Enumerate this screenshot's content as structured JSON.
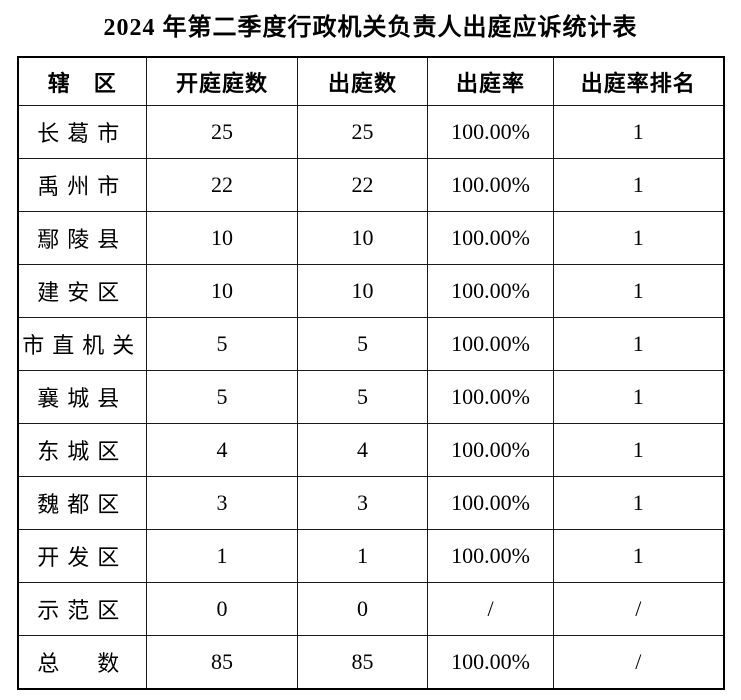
{
  "title": "2024 年第二季度行政机关负责人出庭应诉统计表",
  "colors": {
    "background": "#ffffff",
    "text": "#000000",
    "border": "#000000"
  },
  "table": {
    "headers": {
      "district": "辖　区",
      "sessions": "开庭庭数",
      "appearances": "出庭数",
      "rate": "出庭率",
      "rank": "出庭率排名"
    },
    "rows": [
      {
        "cells": [
          "长葛市",
          "25",
          "25",
          "100.00%",
          "1"
        ]
      },
      {
        "cells": [
          "禹州市",
          "22",
          "22",
          "100.00%",
          "1"
        ]
      },
      {
        "cells": [
          "鄢陵县",
          "10",
          "10",
          "100.00%",
          "1"
        ]
      },
      {
        "cells": [
          "建安区",
          "10",
          "10",
          "100.00%",
          "1"
        ]
      },
      {
        "cells": [
          "市直机关",
          "5",
          "5",
          "100.00%",
          "1"
        ]
      },
      {
        "cells": [
          "襄城县",
          "5",
          "5",
          "100.00%",
          "1"
        ]
      },
      {
        "cells": [
          "东城区",
          "4",
          "4",
          "100.00%",
          "1"
        ]
      },
      {
        "cells": [
          "魏都区",
          "3",
          "3",
          "100.00%",
          "1"
        ]
      },
      {
        "cells": [
          "开发区",
          "1",
          "1",
          "100.00%",
          "1"
        ]
      },
      {
        "cells": [
          "示范区",
          "0",
          "0",
          "/",
          "/"
        ]
      },
      {
        "cells": [
          "总　数",
          "85",
          "85",
          "100.00%",
          "/"
        ]
      }
    ]
  }
}
